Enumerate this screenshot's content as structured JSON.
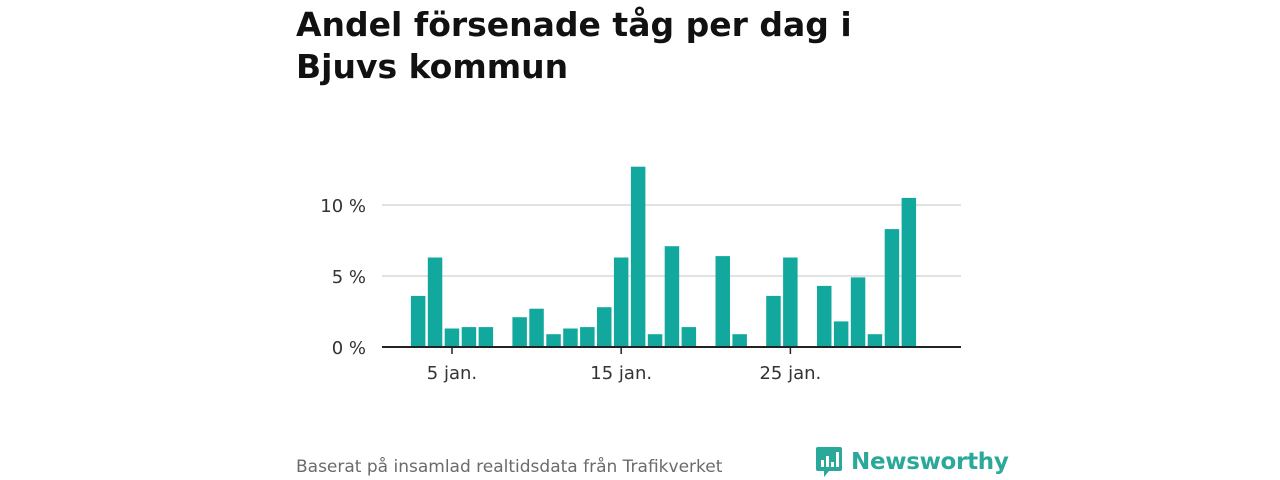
{
  "title": "Andel försenade tåg per dag i Bjuvs kommun",
  "source": "Baserat på insamlad realtidsdata från Trafikverket",
  "brand": {
    "name": "Newsworthy",
    "icon": "bar-chart-speech-bubble-icon",
    "color": "#2aa99a"
  },
  "chart_data": {
    "type": "bar",
    "x_unit": "day of January",
    "days": [
      3,
      4,
      5,
      6,
      7,
      9,
      10,
      11,
      12,
      13,
      14,
      15,
      16,
      17,
      18,
      19,
      21,
      22,
      24,
      25,
      27,
      28,
      29,
      30,
      31,
      32
    ],
    "values": [
      3.6,
      6.3,
      1.3,
      1.4,
      1.4,
      2.1,
      2.7,
      0.9,
      1.3,
      1.4,
      2.8,
      6.3,
      12.7,
      0.9,
      7.1,
      1.4,
      6.4,
      0.9,
      3.6,
      6.3,
      4.3,
      1.8,
      4.9,
      0.9,
      8.3,
      10.5
    ],
    "ylim": [
      0,
      14
    ],
    "yticks": [
      0,
      5,
      10
    ],
    "ytick_labels": [
      "0 %",
      "5 %",
      "10 %"
    ],
    "xticks": [
      5,
      15,
      25
    ],
    "xtick_labels": [
      "5 jan.",
      "15 jan.",
      "25 jan."
    ],
    "xlim": [
      1,
      35
    ],
    "grid": true,
    "bar_color": "#13a89e"
  }
}
